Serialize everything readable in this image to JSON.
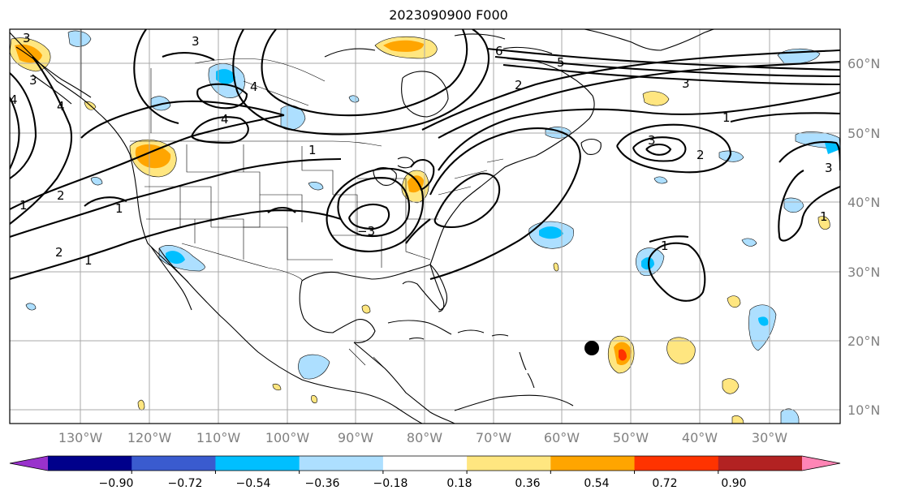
{
  "title": "2023090900 F000",
  "lat_labels": [
    "60°N",
    "50°N",
    "40°N",
    "30°N",
    "20°N",
    "10°N"
  ],
  "lon_labels": [
    "130°W",
    "120°W",
    "110°W",
    "100°W",
    "90°W",
    "80°W",
    "70°W",
    "60°W",
    "50°W",
    "40°W",
    "30°W"
  ],
  "colorbar": {
    "ticks": [
      "−0.90",
      "−0.72",
      "−0.54",
      "−0.36",
      "−0.18",
      "0.18",
      "0.36",
      "0.54",
      "0.72",
      "0.90"
    ],
    "colors": [
      "#9932CC",
      "#00008B",
      "#3A5BCF",
      "#00BFFF",
      "#ADDFFF",
      "#FFFFFF",
      "#FFE680",
      "#FFA500",
      "#FF3300",
      "#B22222",
      "#FF85B5"
    ]
  },
  "contour_labels": [
    "3",
    "4",
    "4",
    "3",
    "1",
    "2",
    "2",
    "1",
    "1",
    "4",
    "4",
    "1",
    "3",
    "−3",
    "6",
    "5",
    "3",
    "2",
    "3",
    "1",
    "2",
    "3",
    "1",
    "1"
  ],
  "marker": "storm-position-dot"
}
